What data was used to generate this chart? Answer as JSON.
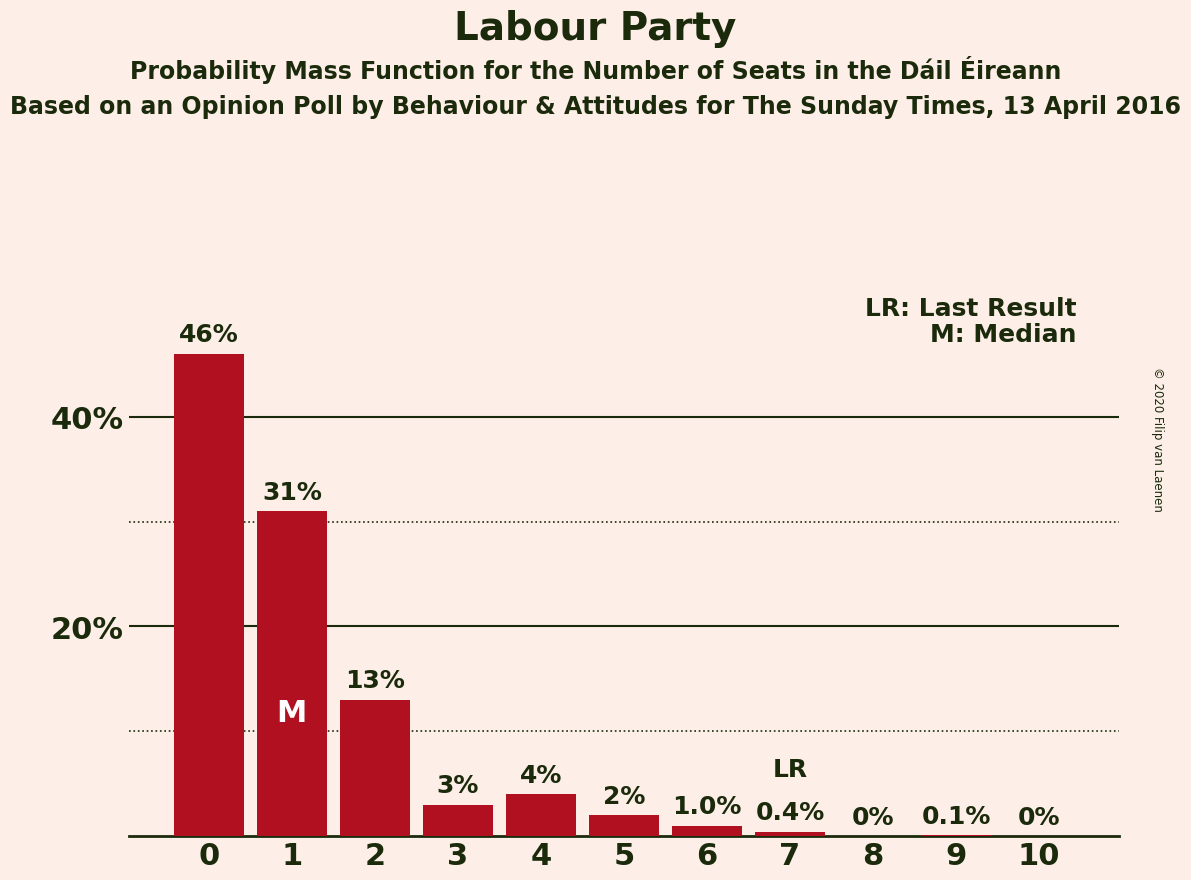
{
  "title": "Labour Party",
  "subtitle1": "Probability Mass Function for the Number of Seats in the Dáil Éireann",
  "subtitle2": "Based on an Opinion Poll by Behaviour & Attitudes for The Sunday Times, 13 April 2016",
  "copyright": "© 2020 Filip van Laenen",
  "categories": [
    0,
    1,
    2,
    3,
    4,
    5,
    6,
    7,
    8,
    9,
    10
  ],
  "values": [
    0.46,
    0.31,
    0.13,
    0.03,
    0.04,
    0.02,
    0.01,
    0.004,
    0.0,
    0.001,
    0.0
  ],
  "bar_labels": [
    "46%",
    "31%",
    "13%",
    "3%",
    "4%",
    "2%",
    "1.0%",
    "0.4%",
    "0%",
    "0.1%",
    "0%"
  ],
  "bar_color": "#b01020",
  "background_color": "#fdeee8",
  "text_color": "#1a2a0a",
  "median_bar": 1,
  "lr_bar": 7,
  "dotted_lines": [
    0.3,
    0.1
  ],
  "solid_lines": [
    0.2,
    0.4
  ],
  "ylim": [
    0,
    0.52
  ],
  "yticks": [
    0.2,
    0.4
  ],
  "ytick_labels": [
    "20%",
    "40%"
  ],
  "legend_lr": "LR: Last Result",
  "legend_m": "M: Median",
  "title_fontsize": 28,
  "subtitle1_fontsize": 17,
  "subtitle2_fontsize": 17,
  "axis_fontsize": 22,
  "bar_label_fontsize": 18,
  "legend_fontsize": 18
}
